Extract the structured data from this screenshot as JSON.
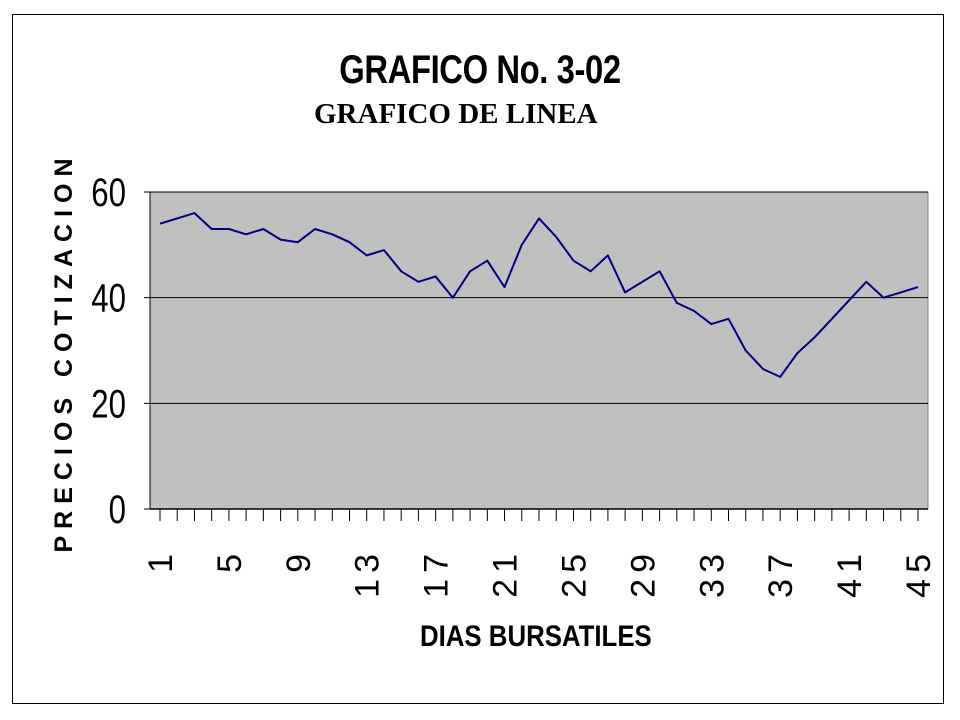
{
  "chart_data": {
    "type": "line",
    "title": "GRAFICO No. 3-02",
    "subtitle": "GRAFICO DE LINEA",
    "xlabel": "DIAS BURSATILES",
    "ylabel": "PRECIOS COTIZACION",
    "ylim": [
      0,
      60
    ],
    "yticks": [
      "0",
      "20",
      "40",
      "60"
    ],
    "xlim": [
      1,
      45
    ],
    "xticks": [
      "1",
      "5",
      "9",
      "13",
      "17",
      "21",
      "25",
      "29",
      "33",
      "37",
      "41",
      "45"
    ],
    "grid": "horizontal",
    "plot_background": "#c0c0c0",
    "line_color": "#000080",
    "x": [
      1,
      2,
      3,
      4,
      5,
      6,
      7,
      8,
      9,
      10,
      11,
      12,
      13,
      14,
      15,
      16,
      17,
      18,
      19,
      20,
      21,
      22,
      23,
      24,
      25,
      26,
      27,
      28,
      29,
      30,
      31,
      32,
      33,
      34,
      35,
      36,
      37,
      38,
      39,
      40,
      41,
      42,
      43,
      44,
      45
    ],
    "series": [
      {
        "values": [
          54,
          55,
          56,
          53,
          53,
          52,
          53,
          51,
          50.5,
          53,
          52,
          50.5,
          48,
          49,
          45,
          43,
          44,
          40,
          45,
          47,
          42,
          50,
          55,
          51.5,
          47,
          45,
          48,
          41,
          43,
          45,
          39,
          37.5,
          35,
          36,
          30,
          26.5,
          25,
          29.5,
          32.5,
          36,
          39.5,
          43,
          40,
          41,
          42
        ]
      }
    ]
  }
}
